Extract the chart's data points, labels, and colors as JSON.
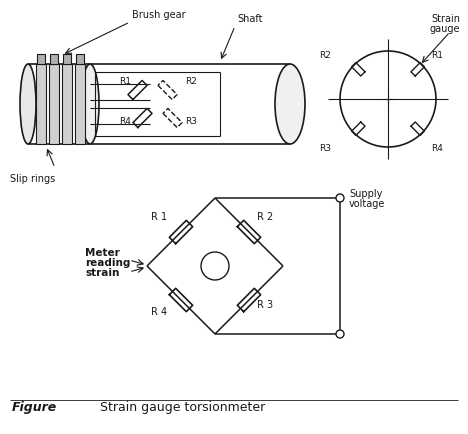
{
  "bg_color": "#ffffff",
  "line_color": "#1a1a1a",
  "fig_width": 4.68,
  "fig_height": 4.34,
  "dpi": 100,
  "caption_figure": "Figure",
  "caption_text": "Strain gauge torsionmeter",
  "label_brush_gear": "Brush gear",
  "label_shaft": "Shaft",
  "label_slip_rings": "Slip rings",
  "label_strain_gauge": "Strain\ngauge",
  "label_meter": "Meter\nreading\nstrain",
  "label_supply": "Supply\nvoltage",
  "r_labels": [
    "R1",
    "R2",
    "R3",
    "R4"
  ]
}
